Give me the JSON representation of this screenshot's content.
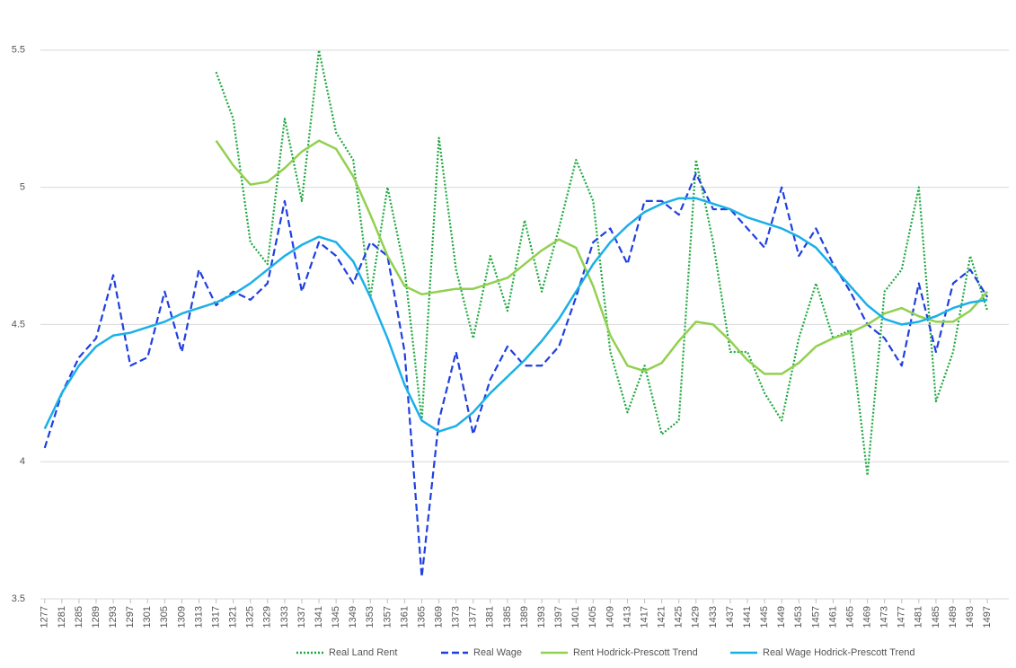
{
  "chart_data": {
    "type": "line",
    "x": [
      1277,
      1281,
      1285,
      1289,
      1293,
      1297,
      1301,
      1305,
      1309,
      1313,
      1317,
      1321,
      1325,
      1329,
      1333,
      1337,
      1341,
      1345,
      1349,
      1353,
      1357,
      1361,
      1365,
      1369,
      1373,
      1377,
      1381,
      1385,
      1389,
      1393,
      1397,
      1401,
      1405,
      1409,
      1413,
      1417,
      1421,
      1425,
      1429,
      1433,
      1437,
      1441,
      1445,
      1449,
      1453,
      1457,
      1461,
      1465,
      1469,
      1473,
      1477,
      1481,
      1485,
      1489,
      1493,
      1497
    ],
    "series": [
      {
        "name": "Real Land Rent",
        "color": "#1fa83f",
        "style": "dotted",
        "values": [
          null,
          null,
          null,
          null,
          null,
          null,
          null,
          null,
          null,
          null,
          5.42,
          5.25,
          4.8,
          4.72,
          5.25,
          4.95,
          5.5,
          5.2,
          5.1,
          4.6,
          5.0,
          4.7,
          4.15,
          5.18,
          4.7,
          4.45,
          4.75,
          4.55,
          4.88,
          4.62,
          4.85,
          5.1,
          4.95,
          4.4,
          4.18,
          4.35,
          4.1,
          4.15,
          5.1,
          4.8,
          4.4,
          4.4,
          4.25,
          4.15,
          4.45,
          4.65,
          4.45,
          4.48,
          3.95,
          4.62,
          4.7,
          5.0,
          4.22,
          4.4,
          4.75,
          4.55
        ]
      },
      {
        "name": "Real Wage",
        "color": "#1f3fe0",
        "style": "dashed",
        "values": [
          4.05,
          4.25,
          4.38,
          4.45,
          4.68,
          4.35,
          4.38,
          4.62,
          4.4,
          4.7,
          4.57,
          4.62,
          4.59,
          4.65,
          4.95,
          4.62,
          4.8,
          4.75,
          4.65,
          4.8,
          4.75,
          4.4,
          3.58,
          4.15,
          4.4,
          4.1,
          4.3,
          4.42,
          4.35,
          4.35,
          4.42,
          4.6,
          4.8,
          4.85,
          4.72,
          4.95,
          4.95,
          4.9,
          5.05,
          4.92,
          4.92,
          4.85,
          4.78,
          5.0,
          4.75,
          4.85,
          4.72,
          4.62,
          4.5,
          4.45,
          4.35,
          4.65,
          4.4,
          4.65,
          4.7,
          4.6
        ]
      },
      {
        "name": "Rent Hodrick-Prescott Trend",
        "color": "#92d050",
        "style": "solid",
        "values": [
          null,
          null,
          null,
          null,
          null,
          null,
          null,
          null,
          null,
          null,
          5.17,
          5.08,
          5.01,
          5.02,
          5.07,
          5.13,
          5.17,
          5.14,
          5.04,
          4.9,
          4.75,
          4.64,
          4.61,
          4.62,
          4.63,
          4.63,
          4.65,
          4.67,
          4.72,
          4.77,
          4.81,
          4.78,
          4.64,
          4.46,
          4.35,
          4.33,
          4.36,
          4.44,
          4.51,
          4.5,
          4.44,
          4.37,
          4.32,
          4.32,
          4.36,
          4.42,
          4.45,
          4.47,
          4.5,
          4.54,
          4.56,
          4.53,
          4.51,
          4.51,
          4.55,
          4.62
        ]
      },
      {
        "name": "Real Wage Hodrick-Prescott Trend",
        "color": "#1ab0e8",
        "style": "solid",
        "values": [
          4.12,
          4.25,
          4.35,
          4.42,
          4.46,
          4.47,
          4.49,
          4.51,
          4.54,
          4.56,
          4.58,
          4.61,
          4.65,
          4.7,
          4.75,
          4.79,
          4.82,
          4.8,
          4.73,
          4.6,
          4.45,
          4.28,
          4.15,
          4.11,
          4.13,
          4.18,
          4.25,
          4.31,
          4.37,
          4.44,
          4.52,
          4.62,
          4.72,
          4.8,
          4.86,
          4.91,
          4.94,
          4.96,
          4.96,
          4.94,
          4.92,
          4.89,
          4.87,
          4.85,
          4.82,
          4.78,
          4.71,
          4.64,
          4.57,
          4.52,
          4.5,
          4.51,
          4.53,
          4.56,
          4.58,
          4.59
        ]
      }
    ],
    "xlim": [
      1276,
      1502
    ],
    "xticks": [
      1277,
      1281,
      1285,
      1289,
      1293,
      1297,
      1301,
      1305,
      1309,
      1313,
      1317,
      1321,
      1325,
      1329,
      1333,
      1337,
      1341,
      1345,
      1349,
      1353,
      1357,
      1361,
      1365,
      1369,
      1373,
      1377,
      1381,
      1385,
      1389,
      1393,
      1397,
      1401,
      1405,
      1409,
      1413,
      1417,
      1421,
      1425,
      1429,
      1433,
      1437,
      1441,
      1445,
      1449,
      1453,
      1457,
      1461,
      1465,
      1469,
      1473,
      1477,
      1481,
      1485,
      1489,
      1493,
      1497
    ],
    "ylim": [
      3.5,
      5.65
    ],
    "yticks": [
      3.5,
      4,
      4.5,
      5,
      5.5
    ],
    "grid": true,
    "legend": "bottom"
  }
}
